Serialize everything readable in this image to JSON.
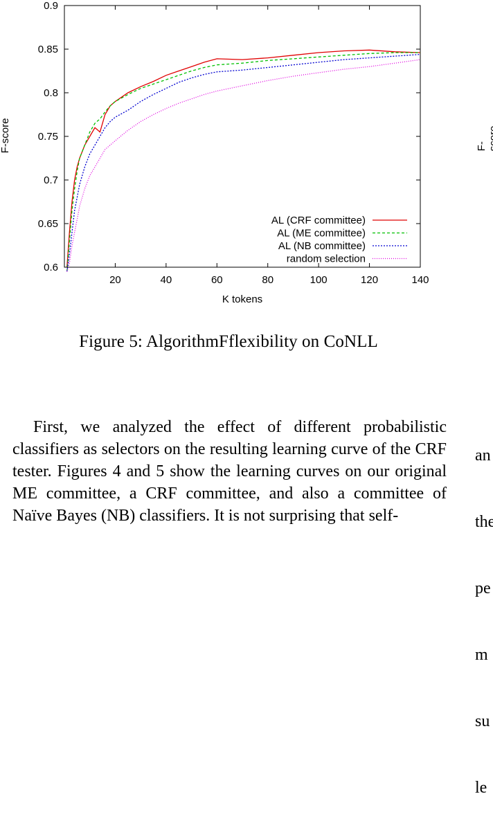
{
  "figure": {
    "caption": "Figure 5: AlgorithmFflexibility on CoNLL"
  },
  "chart_data": {
    "type": "line",
    "xlabel": "K tokens",
    "ylabel": "F-score",
    "xlim": [
      0,
      140
    ],
    "ylim": [
      0.6,
      0.9
    ],
    "x_ticks": [
      20,
      40,
      60,
      80,
      100,
      120,
      140
    ],
    "y_ticks": [
      0.6,
      0.65,
      0.7,
      0.75,
      0.8,
      0.85,
      0.9
    ],
    "grid": false,
    "legend_position": "bottom-right",
    "x": [
      1,
      2,
      3,
      4,
      5,
      6,
      8,
      10,
      12,
      14,
      16,
      18,
      20,
      25,
      30,
      35,
      40,
      45,
      50,
      55,
      60,
      70,
      80,
      90,
      100,
      110,
      120,
      130,
      140
    ],
    "series": [
      {
        "name": "AL (CRF committee)",
        "color": "#e00000",
        "dash": "",
        "values": [
          0.6,
          0.64,
          0.675,
          0.7,
          0.715,
          0.725,
          0.74,
          0.75,
          0.76,
          0.755,
          0.775,
          0.785,
          0.79,
          0.8,
          0.807,
          0.813,
          0.82,
          0.825,
          0.83,
          0.835,
          0.839,
          0.838,
          0.84,
          0.843,
          0.846,
          0.848,
          0.849,
          0.847,
          0.846
        ]
      },
      {
        "name": "AL (ME committee)",
        "color": "#00c000",
        "dash": "4,3",
        "values": [
          0.595,
          0.63,
          0.665,
          0.69,
          0.71,
          0.725,
          0.74,
          0.755,
          0.765,
          0.77,
          0.778,
          0.785,
          0.79,
          0.798,
          0.805,
          0.81,
          0.815,
          0.82,
          0.825,
          0.829,
          0.832,
          0.834,
          0.837,
          0.839,
          0.841,
          0.843,
          0.845,
          0.846,
          0.846
        ]
      },
      {
        "name": "AL (NB committee)",
        "color": "#0000d0",
        "dash": "2,2",
        "values": [
          0.595,
          0.615,
          0.64,
          0.665,
          0.68,
          0.695,
          0.715,
          0.73,
          0.74,
          0.75,
          0.76,
          0.767,
          0.772,
          0.78,
          0.79,
          0.798,
          0.805,
          0.812,
          0.817,
          0.821,
          0.824,
          0.826,
          0.829,
          0.832,
          0.835,
          0.838,
          0.84,
          0.842,
          0.844
        ]
      },
      {
        "name": "random selection",
        "color": "#e000e0",
        "dash": "1,2",
        "values": [
          0.595,
          0.605,
          0.625,
          0.64,
          0.655,
          0.67,
          0.69,
          0.705,
          0.715,
          0.725,
          0.735,
          0.74,
          0.745,
          0.757,
          0.767,
          0.775,
          0.782,
          0.788,
          0.793,
          0.798,
          0.802,
          0.808,
          0.814,
          0.819,
          0.823,
          0.827,
          0.83,
          0.834,
          0.838
        ]
      }
    ]
  },
  "right_column": {
    "ylabel": "F-score",
    "fragments": [
      "an",
      "the",
      "pe",
      "m",
      "su",
      "le"
    ]
  },
  "body_text": "First, we analyzed the effect of different probabilistic classifiers as selectors on the resulting learning curve of the CRF tester. Figures 4 and 5 show the learning curves on our original ME committee, a CRF committee, and also a committee of Naïve Bayes (NB) classifiers. It is not surprising that self-"
}
